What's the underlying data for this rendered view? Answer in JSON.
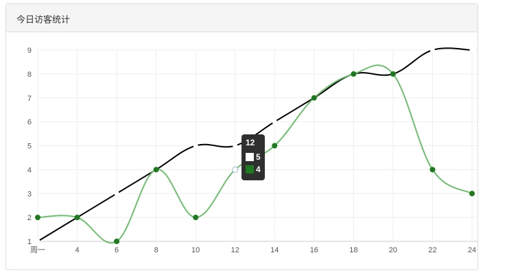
{
  "panel": {
    "title": "今日访客统计"
  },
  "tooltip": {
    "title": "12",
    "rows": [
      {
        "value": "5",
        "swatch": "#ffffff"
      },
      {
        "value": "4",
        "swatch": "#1e7a1e"
      }
    ]
  },
  "colors": {
    "series_a": "#000000",
    "series_b": "#6cc06c",
    "point": "#1e7a1e",
    "grid": "#eeeeee",
    "axis_text": "#555555"
  },
  "chart_data": {
    "type": "line",
    "x_ticks": [
      "周一",
      "4",
      "6",
      "8",
      "10",
      "12",
      "14",
      "16",
      "18",
      "20",
      "22",
      "24"
    ],
    "ylim": [
      1,
      9
    ],
    "y_ticks": [
      "1",
      "2",
      "3",
      "4",
      "5",
      "6",
      "7",
      "8",
      "9"
    ],
    "grid": true,
    "series": [
      {
        "values": [
          1,
          2,
          3,
          4,
          5,
          5,
          6,
          7,
          8,
          8,
          9,
          9
        ]
      },
      {
        "values": [
          2,
          2,
          1,
          4,
          2,
          4,
          5,
          7,
          8,
          8,
          4,
          3
        ]
      }
    ],
    "highlight_index": 5
  }
}
